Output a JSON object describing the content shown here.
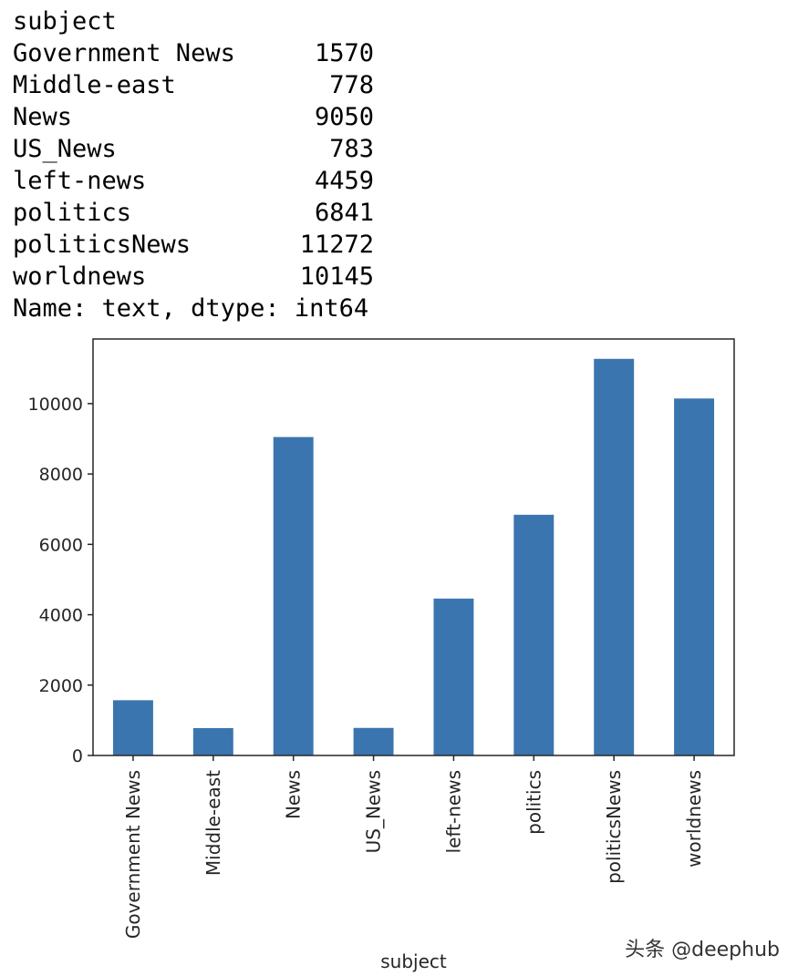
{
  "output": {
    "header": "subject",
    "rows": [
      {
        "label": "Government News",
        "value": "1570"
      },
      {
        "label": "Middle-east",
        "value": "778"
      },
      {
        "label": "News",
        "value": "9050"
      },
      {
        "label": "US_News",
        "value": "783"
      },
      {
        "label": "left-news",
        "value": "4459"
      },
      {
        "label": "politics",
        "value": "6841"
      },
      {
        "label": "politicsNews",
        "value": "11272"
      },
      {
        "label": "worldnews",
        "value": "10145"
      }
    ],
    "footer": "Name: text, dtype: int64"
  },
  "chart_data": {
    "type": "bar",
    "categories": [
      "Government News",
      "Middle-east",
      "News",
      "US_News",
      "left-news",
      "politics",
      "politicsNews",
      "worldnews"
    ],
    "values": [
      1570,
      778,
      9050,
      783,
      4459,
      6841,
      11272,
      10145
    ],
    "title": "",
    "xlabel": "subject",
    "ylabel": "",
    "ylim": [
      0,
      11836
    ],
    "yticks": [
      0,
      2000,
      4000,
      6000,
      8000,
      10000
    ],
    "grid": false,
    "legend": "none",
    "bar_color": "#3b75af",
    "axis_color": "#262626"
  },
  "watermark": "头条 @deephub"
}
